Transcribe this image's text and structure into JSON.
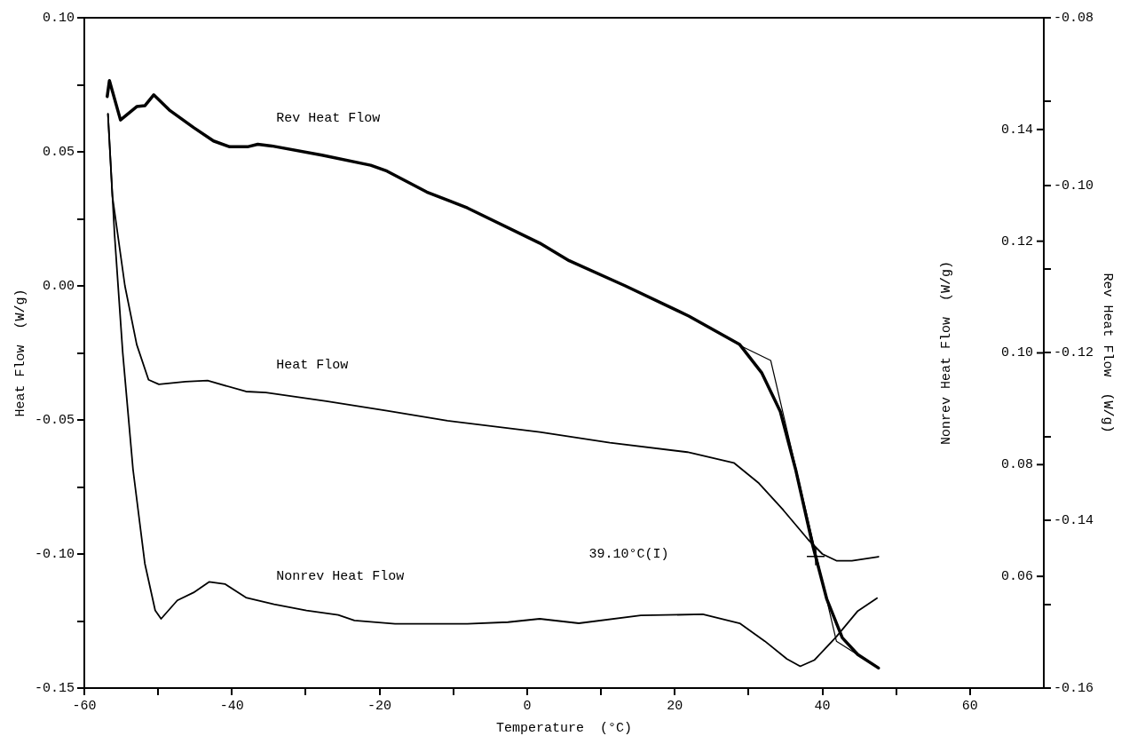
{
  "chart_data": {
    "type": "line",
    "xlabel": "Temperature  (°C)",
    "ylabel": "Heat Flow  (W/g)",
    "y2label": "Rev Heat Flow  (W/g)",
    "y3label": "Nonrev Heat Flow  (W/g)",
    "xlim": [
      -60,
      70
    ],
    "xticks": [
      -60,
      {
        "value": -50,
        "label": null
      },
      -40,
      {
        "value": -30,
        "label": null
      },
      -20,
      {
        "value": -10,
        "label": null
      },
      0,
      {
        "value": 10,
        "label": null
      },
      20,
      {
        "value": 30,
        "label": null
      },
      40,
      {
        "value": 50,
        "label": null
      },
      60
    ],
    "ylim": [
      -0.15,
      0.1
    ],
    "yticks": [
      {
        "value": 0.1,
        "label": "0.10"
      },
      {
        "value": 0.075,
        "label": null
      },
      0.05,
      {
        "value": 0.025,
        "label": null
      },
      {
        "value": 0,
        "label": "0.00"
      },
      {
        "value": -0.025,
        "label": null
      },
      -0.05,
      {
        "value": -0.075,
        "label": null
      },
      {
        "value": -0.1,
        "label": "-0.10"
      },
      {
        "value": -0.125,
        "label": null
      },
      -0.15
    ],
    "y2lim": [
      -0.16,
      -0.08
    ],
    "y2ticks": [
      -0.08,
      {
        "value": -0.09,
        "label": null
      },
      {
        "value": -0.1,
        "label": "-0.10"
      },
      {
        "value": -0.11,
        "label": null
      },
      -0.12,
      {
        "value": -0.13,
        "label": null
      },
      -0.14,
      {
        "value": -0.15,
        "label": null
      },
      -0.16
    ],
    "y3lim": [
      0.04,
      0.16
    ],
    "y3ticks": [
      0.06,
      0.08,
      {
        "value": 0.1,
        "label": "0.10"
      },
      0.12,
      0.14
    ],
    "series": [
      {
        "name": "Rev Heat Flow",
        "color": "#000000",
        "axis": "y2",
        "x": [
          -56.9,
          -56.6,
          -55.1,
          -52.9,
          -51.8,
          -50.6,
          -48.5,
          -45.2,
          -42.5,
          -40.3,
          -37.9,
          -36.5,
          -34.6,
          -27.8,
          -21.2,
          -19,
          -13.6,
          -8.1,
          1.7,
          5.7,
          13.3,
          21.9,
          28.8,
          31.8,
          34.3,
          36.4,
          38.7,
          40.6,
          42.7,
          44.8,
          47.6
        ],
        "values": [
          -0.0894,
          -0.0875,
          -0.0922,
          -0.0906,
          -0.0905,
          -0.0892,
          -0.091,
          -0.0931,
          -0.0947,
          -0.0954,
          -0.0954,
          -0.0951,
          -0.0953,
          -0.0964,
          -0.0976,
          -0.0983,
          -0.1008,
          -0.1027,
          -0.1069,
          -0.109,
          -0.112,
          -0.1156,
          -0.119,
          -0.1224,
          -0.127,
          -0.134,
          -0.143,
          -0.1494,
          -0.154,
          -0.156,
          -0.1576
        ]
      },
      {
        "name": "Heat Flow",
        "color": "#000000",
        "x": [
          -56.8,
          -56.2,
          -54.5,
          -52.9,
          -51.3,
          -49.9,
          -46.3,
          -43.3,
          -38.1,
          -35.4,
          -27.2,
          -19,
          -10.8,
          1.7,
          11.2,
          21.7,
          28,
          31.4,
          34.7,
          38.1,
          40,
          41.9,
          44,
          47.6
        ],
        "values": [
          0.0641,
          0.0335,
          0,
          -0.0219,
          -0.035,
          -0.0367,
          -0.0357,
          -0.0353,
          -0.0394,
          -0.0398,
          -0.043,
          -0.0466,
          -0.0503,
          -0.0545,
          -0.0585,
          -0.062,
          -0.066,
          -0.0736,
          -0.0836,
          -0.0947,
          -0.1,
          -0.1025,
          -0.1025,
          -0.101
        ]
      },
      {
        "name": "Nonrev Heat Flow",
        "color": "#000000",
        "axis": "y3",
        "x": [
          -56.8,
          -55.9,
          -54.8,
          -53.4,
          -51.8,
          -50.4,
          -49.6,
          -47.4,
          -45.2,
          -43.1,
          -40.9,
          -38.1,
          -34.3,
          -29.9,
          -25.6,
          -23.4,
          -17.9,
          -8.1,
          -2.6,
          1.7,
          7,
          15.4,
          23.8,
          28.8,
          32.2,
          35.2,
          37,
          38.9,
          41.9,
          44.8,
          47.4
        ],
        "values": [
          0.1428,
          0.1211,
          0.1001,
          0.0791,
          0.0623,
          0.0539,
          0.0524,
          0.0557,
          0.0571,
          0.059,
          0.0586,
          0.0562,
          0.055,
          0.0539,
          0.0531,
          0.0521,
          0.0515,
          0.0515,
          0.0518,
          0.0524,
          0.0516,
          0.053,
          0.0532,
          0.0516,
          0.0484,
          0.0452,
          0.0439,
          0.045,
          0.0492,
          0.0538,
          0.0561
        ]
      },
      {
        "type": "line",
        "color": "#000000",
        "axis": "y2",
        "x": [
          28.8,
          33,
          41.9,
          47.6
        ],
        "values": [
          -0.1191,
          -0.1209,
          -0.1544,
          -0.1576
        ]
      },
      {
        "type": "scatter",
        "color": "#000000",
        "axis": "y2",
        "marker": "cross",
        "x": [
          39.1
        ],
        "values": [
          -0.1443
        ]
      }
    ],
    "annotations": [
      "39.10°C(I)"
    ]
  }
}
